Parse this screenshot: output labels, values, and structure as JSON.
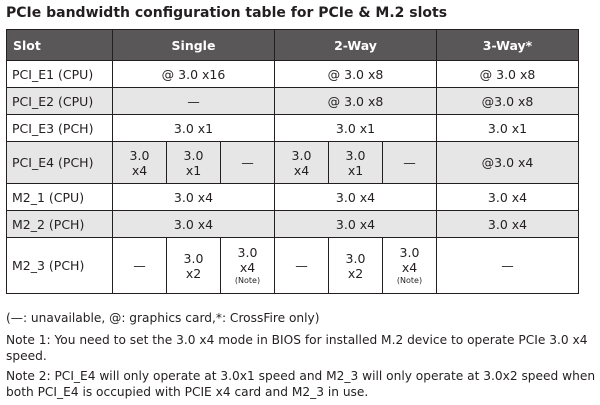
{
  "title": "PCIe bandwidth configuration table for PCIe & M.2 slots",
  "headers": {
    "slot": "Slot",
    "single": "Single",
    "two_way": "2-Way",
    "three_way": "3-Way*"
  },
  "rows": {
    "e1": {
      "slot": "PCI_E1 (CPU)",
      "single": "@ 3.0 x16",
      "two_way": "@ 3.0 x8",
      "three_way": "@ 3.0 x8"
    },
    "e2": {
      "slot": "PCI_E2 (CPU)",
      "single": "—",
      "two_way": "@ 3.0 x8",
      "three_way": "@3.0 x8"
    },
    "e3": {
      "slot": "PCI_E3 (PCH)",
      "single": "3.0 x1",
      "two_way": "3.0 x1",
      "three_way": "3.0 x1"
    },
    "e4": {
      "slot": "PCI_E4 (PCH)",
      "single": {
        "a": "3.0\nx4",
        "b": "3.0\nx1",
        "c": "—"
      },
      "two_way": {
        "a": "3.0\nx4",
        "b": "3.0\nx1",
        "c": "—"
      },
      "three_way": "@3.0 x4"
    },
    "m21": {
      "slot": "M2_1 (CPU)",
      "single": "3.0 x4",
      "two_way": "3.0 x4",
      "three_way": "3.0 x4"
    },
    "m22": {
      "slot": "M2_2 (PCH)",
      "single": "3.0 x4",
      "two_way": "3.0 x4",
      "three_way": "3.0 x4"
    },
    "m23": {
      "slot": "M2_3 (PCH)",
      "single": {
        "a": "—",
        "b": "3.0\nx2",
        "c": "3.0\nx4",
        "c_note": "(Note)"
      },
      "two_way": {
        "a": "—",
        "b": "3.0\nx2",
        "c": "3.0\nx4",
        "c_note": "(Note)"
      },
      "three_way": "—"
    }
  },
  "legend": "(—: unavailable, @: graphics card,*: CrossFire only)",
  "note1": "Note 1: You need to set the 3.0 x4 mode in BIOS for installed M.2 device to operate PCIe 3.0 x4 speed.",
  "note2": "Note 2: PCI_E4 will only operate at 3.0x1 speed and M2_3 will only operate at 3.0x2 speed when both PCI_E4 is occupied with PCIE x4 card and M2_3 in use."
}
